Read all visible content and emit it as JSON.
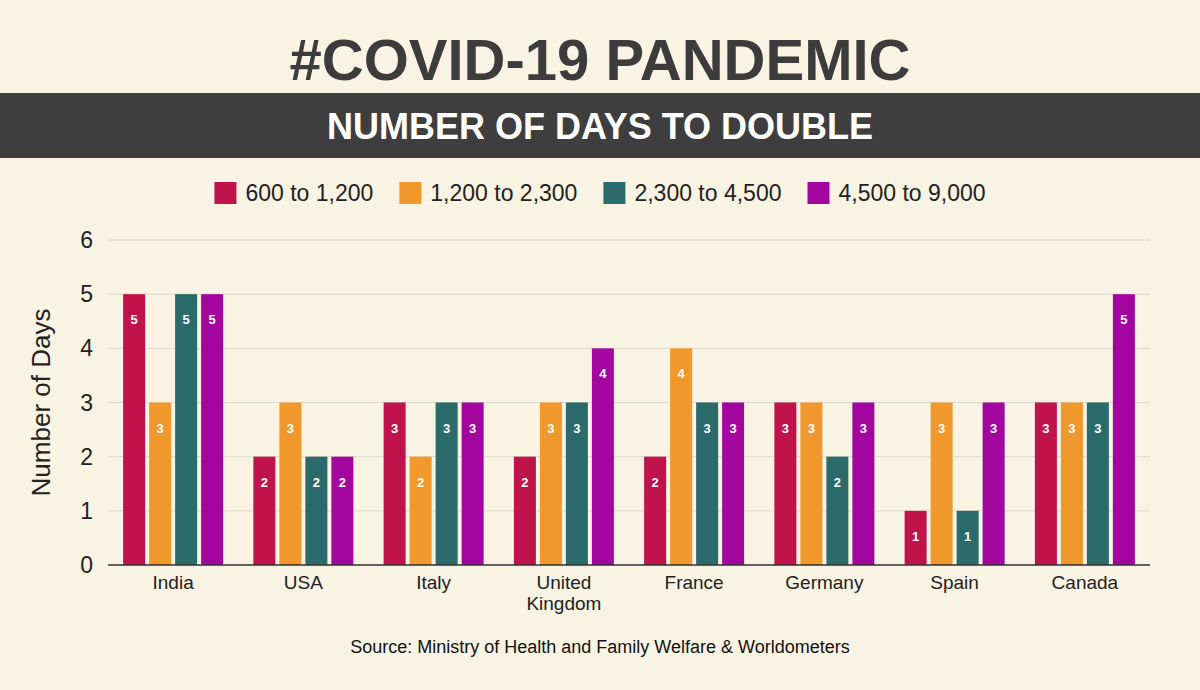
{
  "chart_data": {
    "type": "bar",
    "title": "#COVID-19 PANDEMIC",
    "subtitle": "NUMBER OF DAYS TO DOUBLE",
    "y_label": "Number of Days",
    "annotations": [
      "Source: Ministry of Health and Family Welfare & Worldometers"
    ],
    "categories": [
      "India",
      "USA",
      "Italy",
      "United Kingdom",
      "France",
      "Germany",
      "Spain",
      "Canada"
    ],
    "series": [
      {
        "name": "600 to 1,200",
        "color": "#c0134b",
        "values": [
          5,
          2,
          3,
          2,
          2,
          3,
          1,
          3
        ]
      },
      {
        "name": "1,200 to 2,300",
        "color": "#f0982b",
        "values": [
          3,
          3,
          2,
          3,
          4,
          3,
          3,
          3
        ]
      },
      {
        "name": "2,300 to 4,500",
        "color": "#2b6a6b",
        "values": [
          5,
          2,
          3,
          3,
          3,
          2,
          1,
          3
        ]
      },
      {
        "name": "4,500 to 9,000",
        "color": "#a2069f",
        "values": [
          5,
          2,
          3,
          4,
          3,
          3,
          3,
          5
        ]
      }
    ],
    "ylim": [
      0,
      6
    ],
    "yticks": [
      0,
      1,
      2,
      3,
      4,
      5,
      6
    ],
    "grid": true,
    "legend": "top",
    "data_labels": true
  }
}
